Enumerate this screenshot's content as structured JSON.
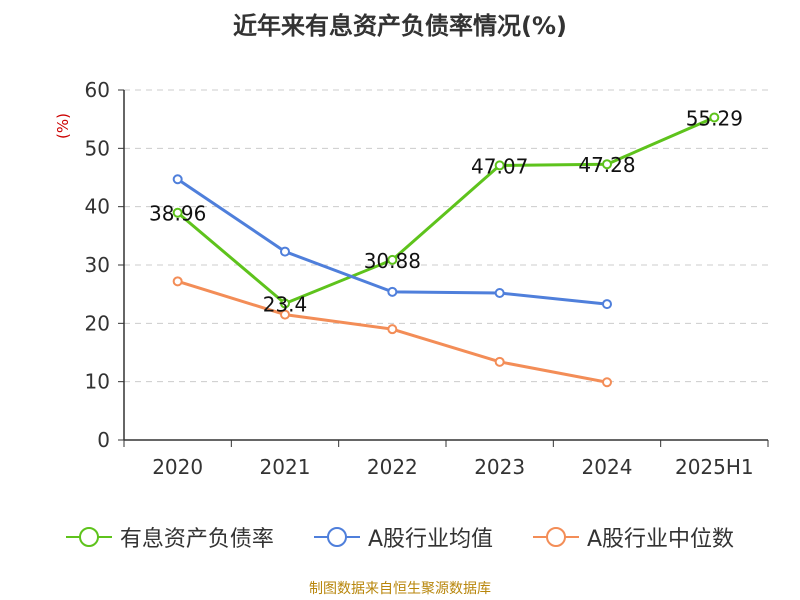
{
  "title": "近年来有息资产负债率情况(%)",
  "footer": "制图数据来自恒生聚源数据库",
  "colors": {
    "series": [
      "#5ec31c",
      "#4f7fdb",
      "#f38d57"
    ],
    "axis": "#333333",
    "grid": "#cccccc",
    "ylabel": "#cc0000"
  },
  "chart_data": {
    "type": "line",
    "title": "近年来有息资产负债率情况(%)",
    "ylabel": "(%)",
    "xlabel": "",
    "categories": [
      "2020",
      "2021",
      "2022",
      "2023",
      "2024",
      "2025H1"
    ],
    "ylim": [
      0,
      60
    ],
    "yticks": [
      0,
      10,
      20,
      30,
      40,
      50,
      60
    ],
    "grid": true,
    "legend_position": "bottom",
    "series": [
      {
        "name": "有息资产负债率",
        "values": [
          38.96,
          23.4,
          30.88,
          47.07,
          47.28,
          55.29
        ],
        "data_labels": [
          "38.96",
          "23.4",
          "30.88",
          "47.07",
          "47.28",
          "55.29"
        ]
      },
      {
        "name": "A股行业均值",
        "values": [
          44.7,
          32.3,
          25.4,
          25.2,
          23.3,
          null
        ]
      },
      {
        "name": "A股行业中位数",
        "values": [
          27.2,
          21.5,
          19.0,
          13.4,
          9.9,
          null
        ]
      }
    ]
  }
}
